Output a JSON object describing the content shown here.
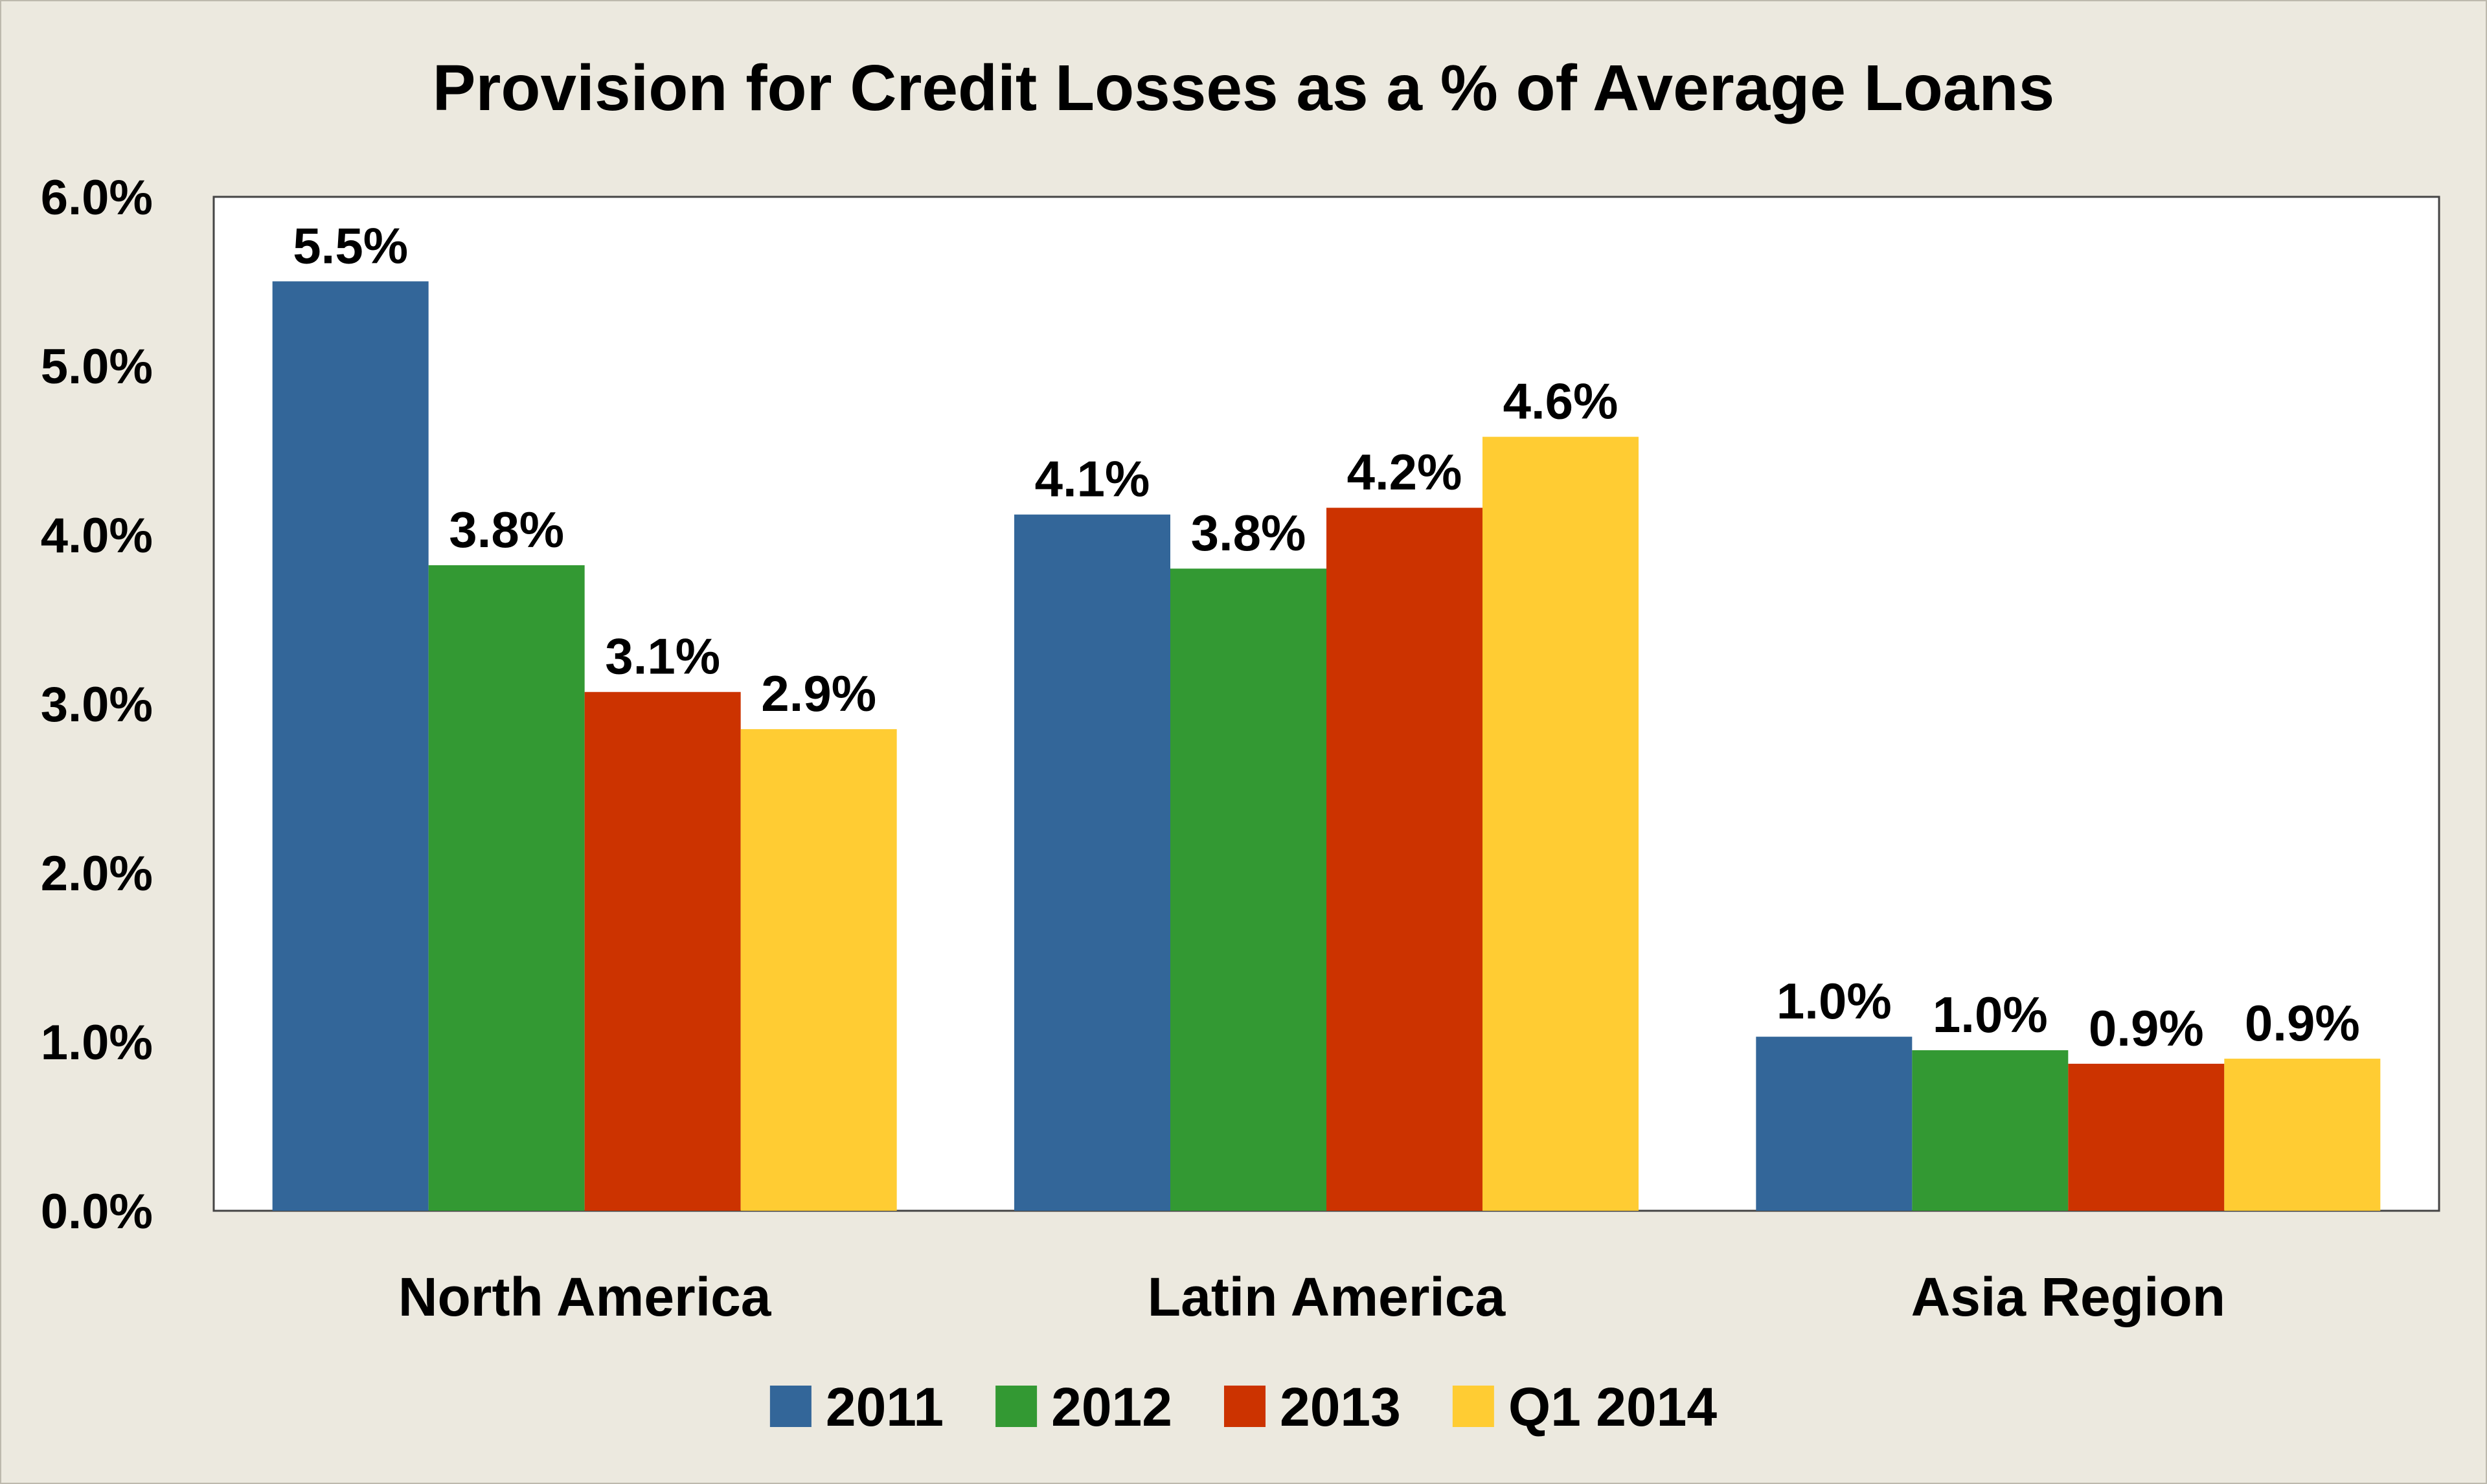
{
  "chart_data": {
    "type": "bar",
    "title": "Provision for Credit Losses as a % of Average Loans",
    "xlabel": "",
    "ylabel": "",
    "ylim": [
      0,
      6
    ],
    "yticks": [
      "0.0%",
      "1.0%",
      "2.0%",
      "3.0%",
      "4.0%",
      "5.0%",
      "6.0%"
    ],
    "categories": [
      "North America",
      "Latin America",
      "Asia Region"
    ],
    "series": [
      {
        "name": "2011",
        "color": "#336699",
        "values": [
          5.5,
          4.12,
          1.03
        ],
        "labels": [
          "5.5%",
          "4.1%",
          "1.0%"
        ]
      },
      {
        "name": "2012",
        "color": "#339933",
        "values": [
          3.82,
          3.8,
          0.95
        ],
        "labels": [
          "3.8%",
          "3.8%",
          "1.0%"
        ]
      },
      {
        "name": "2013",
        "color": "#cc3300",
        "values": [
          3.07,
          4.16,
          0.87
        ],
        "labels": [
          "3.1%",
          "4.2%",
          "0.9%"
        ]
      },
      {
        "name": "Q1 2014",
        "color": "#ffcc33",
        "values": [
          2.85,
          4.58,
          0.9
        ],
        "labels": [
          "2.9%",
          "4.6%",
          "0.9%"
        ]
      }
    ],
    "legend": "bottom-center",
    "grid": false
  }
}
